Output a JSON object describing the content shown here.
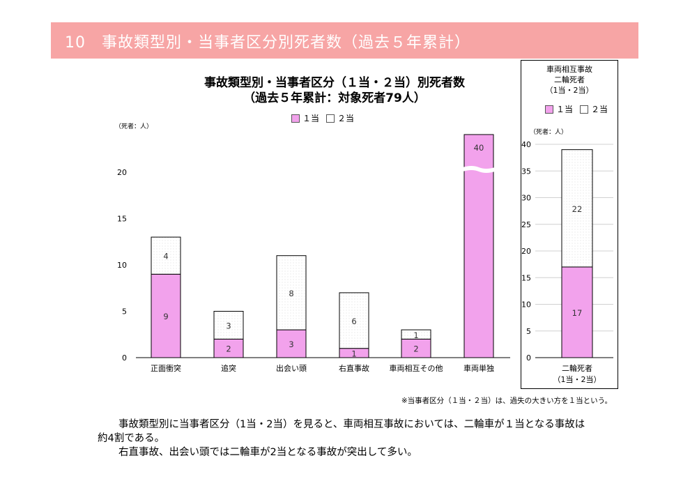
{
  "header": {
    "title": "10　事故類型別・当事者区分別死者数（過去５年累計）"
  },
  "main_chart": {
    "title_line1": "事故類型別・当事者区分（１当・２当）別死者数",
    "title_line2": "（過去５年累計：対象死者79人）",
    "unit": "（死者：人）"
  },
  "legend": {
    "s1": "１当",
    "s2": "２当"
  },
  "side_chart": {
    "title_line1": "車両相互事故",
    "title_line2": "二輪死者",
    "title_line3": "（1当・2当）",
    "unit": "（死者：人）",
    "category_line1": "二輪死者",
    "category_line2": "（1当・2当）"
  },
  "note": "※当事者区分（１当・２当）は、過失の大きい方を１当という。",
  "paragraphs": {
    "p1_line1": "事故類型別に当事者区分（1当・2当）を見ると、車両相互事故においては、二輪車が１当となる事故は",
    "p1_line2": "約4割である。",
    "p2": "右直事故、出会い頭では二輪車が2当となる事故が突出して多い。"
  },
  "colors": {
    "first": "#f2a2ec",
    "second": "#ffffff",
    "banner": "#f7a5a5"
  },
  "chart_data": [
    {
      "type": "bar",
      "stacked": true,
      "categories": [
        "正面衝突",
        "追突",
        "出会い頭",
        "右直事故",
        "車両相互その他",
        "車両単独"
      ],
      "series": [
        {
          "name": "１当",
          "values": [
            9,
            2,
            3,
            1,
            2,
            40
          ]
        },
        {
          "name": "２当",
          "values": [
            4,
            3,
            8,
            6,
            1,
            0
          ]
        }
      ],
      "ylim": [
        0,
        23
      ],
      "yticks": [
        0,
        5,
        10,
        15,
        20
      ],
      "axis_break": true,
      "grid": false,
      "legend": "top"
    },
    {
      "type": "bar",
      "stacked": true,
      "categories": [
        "二輪死者"
      ],
      "series": [
        {
          "name": "１当",
          "values": [
            17
          ]
        },
        {
          "name": "２当",
          "values": [
            22
          ]
        }
      ],
      "ylim": [
        0,
        40
      ],
      "yticks": [
        0,
        5,
        10,
        15,
        20,
        25,
        30,
        35,
        40
      ],
      "grid": true,
      "legend": "top"
    }
  ]
}
